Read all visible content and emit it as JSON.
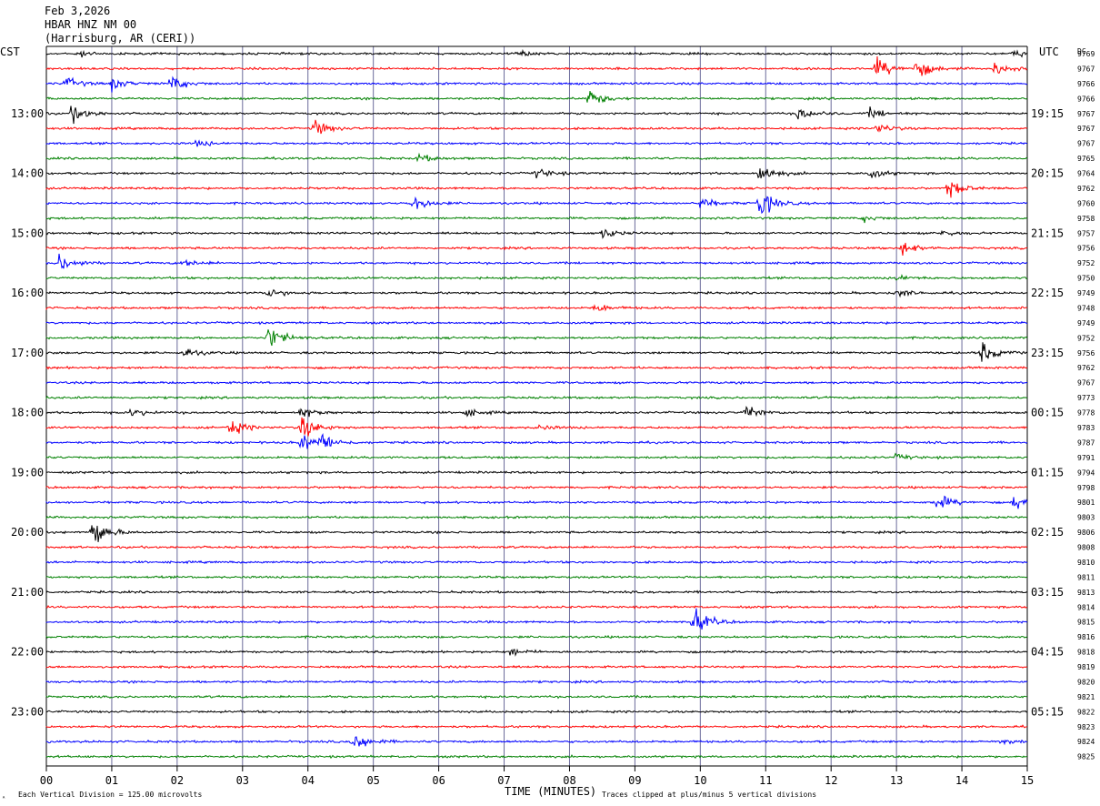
{
  "header": {
    "date": "Feb 3,2026",
    "station": "HBAR HNZ NM 00",
    "location": "(Harrisburg, AR (CERI))"
  },
  "labels": {
    "left_tz": "CST",
    "right_tz": "UTC",
    "dc": "DC",
    "xlabel": "TIME (MINUTES)",
    "scale_note": "Each Vertical Division =  125.00 microvolts",
    "clip_note": "Traces clipped at plus/minus 5 vertical divisions"
  },
  "colors": {
    "trace_cycle": [
      "#000000",
      "#ff0000",
      "#0000ff",
      "#008000"
    ],
    "grid_vertical": "#6b6b9b",
    "frame": "#000000"
  },
  "chart_data": {
    "type": "line",
    "title": "HBAR HNZ NM 00",
    "xlabel": "TIME (MINUTES)",
    "xlim": [
      0,
      15
    ],
    "x_ticks": [
      "00",
      "01",
      "02",
      "03",
      "04",
      "05",
      "06",
      "07",
      "08",
      "09",
      "10",
      "11",
      "12",
      "13",
      "14",
      "15"
    ],
    "trace_interval_minutes": 15,
    "cst_hour_labels": [
      "13:00",
      "14:00",
      "15:00",
      "16:00",
      "17:00",
      "18:00",
      "19:00",
      "20:00",
      "21:00",
      "22:00",
      "23:00"
    ],
    "utc_hour_labels": [
      "19:15",
      "20:15",
      "21:15",
      "22:15",
      "23:15",
      "00:15",
      "01:15",
      "02:15",
      "03:15",
      "04:15",
      "05:15"
    ],
    "dc_offsets": [
      9769,
      9767,
      9766,
      9766,
      9767,
      9767,
      9767,
      9765,
      9764,
      9762,
      9760,
      9758,
      9757,
      9756,
      9752,
      9750,
      9749,
      9748,
      9749,
      9752,
      9756,
      9762,
      9767,
      9773,
      9778,
      9783,
      9787,
      9791,
      9794,
      9798,
      9801,
      9803,
      9806,
      9808,
      9810,
      9811,
      9813,
      9814,
      9815,
      9816,
      9818,
      9819,
      9820,
      9821,
      9822,
      9823,
      9824,
      9825
    ],
    "events": [
      {
        "trace": 0,
        "minute": 0.5,
        "amplitude": 0.3
      },
      {
        "trace": 0,
        "minute": 7.2,
        "amplitude": 0.3
      },
      {
        "trace": 0,
        "minute": 14.8,
        "amplitude": 0.4
      },
      {
        "trace": 1,
        "minute": 12.7,
        "amplitude": 1.1
      },
      {
        "trace": 1,
        "minute": 13.3,
        "amplitude": 1.0
      },
      {
        "trace": 1,
        "minute": 14.5,
        "amplitude": 0.6
      },
      {
        "trace": 2,
        "minute": 0.3,
        "amplitude": 0.6
      },
      {
        "trace": 2,
        "minute": 1.0,
        "amplitude": 0.6
      },
      {
        "trace": 2,
        "minute": 1.9,
        "amplitude": 0.8
      },
      {
        "trace": 3,
        "minute": 8.3,
        "amplitude": 0.9
      },
      {
        "trace": 4,
        "minute": 0.4,
        "amplitude": 0.9
      },
      {
        "trace": 4,
        "minute": 11.5,
        "amplitude": 0.7
      },
      {
        "trace": 4,
        "minute": 12.6,
        "amplitude": 0.5
      },
      {
        "trace": 5,
        "minute": 4.1,
        "amplitude": 0.8
      },
      {
        "trace": 5,
        "minute": 12.7,
        "amplitude": 0.5
      },
      {
        "trace": 6,
        "minute": 2.3,
        "amplitude": 0.3
      },
      {
        "trace": 7,
        "minute": 5.7,
        "amplitude": 0.4
      },
      {
        "trace": 8,
        "minute": 7.5,
        "amplitude": 0.5
      },
      {
        "trace": 8,
        "minute": 10.9,
        "amplitude": 1.0
      },
      {
        "trace": 8,
        "minute": 12.6,
        "amplitude": 0.5
      },
      {
        "trace": 9,
        "minute": 13.8,
        "amplitude": 1.0
      },
      {
        "trace": 10,
        "minute": 5.6,
        "amplitude": 0.8
      },
      {
        "trace": 10,
        "minute": 10.0,
        "amplitude": 0.6
      },
      {
        "trace": 10,
        "minute": 10.9,
        "amplitude": 1.5
      },
      {
        "trace": 11,
        "minute": 12.5,
        "amplitude": 0.3
      },
      {
        "trace": 12,
        "minute": 8.5,
        "amplitude": 0.5
      },
      {
        "trace": 12,
        "minute": 13.7,
        "amplitude": 0.3
      },
      {
        "trace": 13,
        "minute": 13.1,
        "amplitude": 0.7
      },
      {
        "trace": 14,
        "minute": 0.2,
        "amplitude": 1.0
      },
      {
        "trace": 14,
        "minute": 2.1,
        "amplitude": 0.4
      },
      {
        "trace": 15,
        "minute": 13.0,
        "amplitude": 0.3
      },
      {
        "trace": 16,
        "minute": 3.4,
        "amplitude": 0.5
      },
      {
        "trace": 16,
        "minute": 13.0,
        "amplitude": 0.4
      },
      {
        "trace": 17,
        "minute": 8.4,
        "amplitude": 0.4
      },
      {
        "trace": 19,
        "minute": 3.4,
        "amplitude": 1.2
      },
      {
        "trace": 20,
        "minute": 2.1,
        "amplitude": 0.5
      },
      {
        "trace": 20,
        "minute": 14.3,
        "amplitude": 1.0
      },
      {
        "trace": 24,
        "minute": 1.3,
        "amplitude": 0.4
      },
      {
        "trace": 24,
        "minute": 3.9,
        "amplitude": 0.5
      },
      {
        "trace": 24,
        "minute": 6.4,
        "amplitude": 0.4
      },
      {
        "trace": 24,
        "minute": 10.7,
        "amplitude": 0.7
      },
      {
        "trace": 25,
        "minute": 2.8,
        "amplitude": 0.9
      },
      {
        "trace": 25,
        "minute": 3.9,
        "amplitude": 1.3
      },
      {
        "trace": 25,
        "minute": 7.5,
        "amplitude": 0.3
      },
      {
        "trace": 26,
        "minute": 3.9,
        "amplitude": 0.9
      },
      {
        "trace": 26,
        "minute": 4.2,
        "amplitude": 0.8
      },
      {
        "trace": 27,
        "minute": 13.0,
        "amplitude": 0.3
      },
      {
        "trace": 30,
        "minute": 13.6,
        "amplitude": 0.9
      },
      {
        "trace": 30,
        "minute": 14.8,
        "amplitude": 0.9
      },
      {
        "trace": 32,
        "minute": 0.7,
        "amplitude": 1.6
      },
      {
        "trace": 38,
        "minute": 9.9,
        "amplitude": 1.4
      },
      {
        "trace": 40,
        "minute": 7.1,
        "amplitude": 0.4
      },
      {
        "trace": 46,
        "minute": 4.7,
        "amplitude": 1.1
      },
      {
        "trace": 46,
        "minute": 14.6,
        "amplitude": 0.3
      }
    ]
  }
}
